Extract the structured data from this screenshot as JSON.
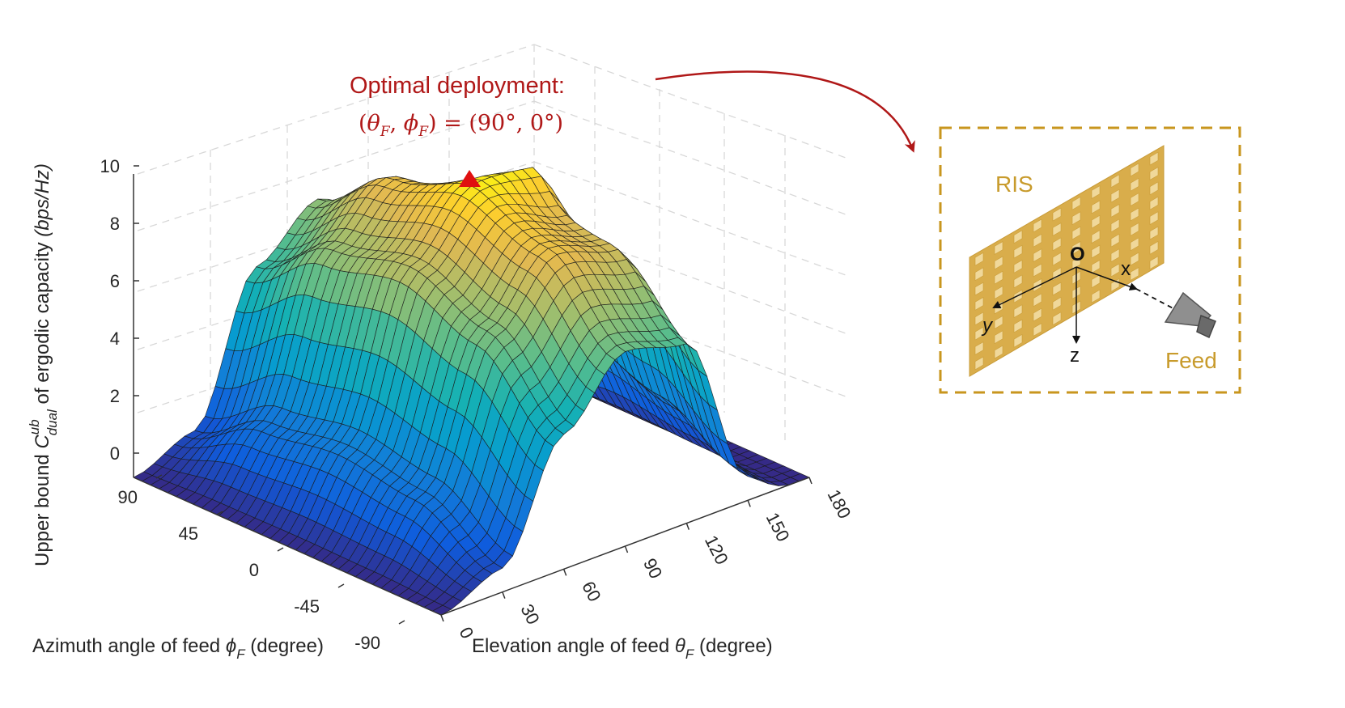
{
  "chart_data": {
    "type": "surface3d",
    "title": "",
    "x_axis": {
      "label_prefix": "Elevation angle of feed ",
      "label_symbol": "θ",
      "label_sub": "F",
      "label_suffix": " (degree)",
      "range": [
        0,
        180
      ],
      "ticks": [
        "0",
        "30",
        "60",
        "90",
        "120",
        "150",
        "180"
      ]
    },
    "y_axis": {
      "label_prefix": "Azimuth angle of feed ",
      "label_symbol": "ϕ",
      "label_sub": "F",
      "label_suffix": " (degree)",
      "range": [
        -90,
        90
      ],
      "ticks": [
        "90",
        "45",
        "0",
        "-45",
        "-90"
      ]
    },
    "z_axis": {
      "label_prefix": "Upper bound ",
      "label_symbol": "C",
      "label_sup": "ub",
      "label_sub": "dual",
      "label_suffix": " of ergodic capacity ",
      "label_units": "(bps/Hz)",
      "range": [
        0,
        10
      ],
      "ticks": [
        "0",
        "2",
        "4",
        "6",
        "8",
        "10"
      ]
    },
    "surface_samples": {
      "theta_deg": [
        0,
        30,
        60,
        90,
        120,
        150,
        180
      ],
      "phi_deg": [
        -90,
        -45,
        0,
        45,
        90
      ],
      "capacity_bps_hz": [
        [
          0.0,
          0.0,
          0.0,
          0.0,
          0.0
        ],
        [
          0.8,
          2.2,
          2.6,
          2.2,
          0.8
        ],
        [
          4.5,
          6.8,
          7.8,
          7.2,
          5.5
        ],
        [
          6.5,
          8.8,
          9.6,
          8.8,
          7.0
        ],
        [
          6.0,
          8.2,
          8.6,
          7.6,
          5.2
        ],
        [
          0.8,
          2.0,
          2.8,
          2.0,
          0.8
        ],
        [
          0.0,
          0.0,
          0.0,
          0.0,
          0.0
        ]
      ]
    },
    "max_point": {
      "theta_deg": 90,
      "phi_deg": 0,
      "marker": "red-triangle"
    },
    "annotation": {
      "line1": "Optimal deployment:",
      "line2": "(θ_F, ϕ_F) = (90°, 0°)"
    },
    "colormap": "parula"
  },
  "annotation_text": {
    "title": "Optimal deployment:",
    "open": "(",
    "theta": "θ",
    "sep": ", ",
    "phi": "ϕ",
    "sub": "F",
    "close_eq": ") = ",
    "value": "(90°, 0°)"
  },
  "inset": {
    "ris_label": "RIS",
    "feed_label": "Feed",
    "origin_label": "O",
    "x_label": "x",
    "y_label": "y",
    "z_label": "z",
    "colors": {
      "ris": "#d9ad4b",
      "frame": "#c8961e",
      "feed": "#8c8c8c"
    }
  },
  "colors": {
    "annotation": "#b01818",
    "arrow": "#b01818",
    "marker": "#e01010"
  }
}
